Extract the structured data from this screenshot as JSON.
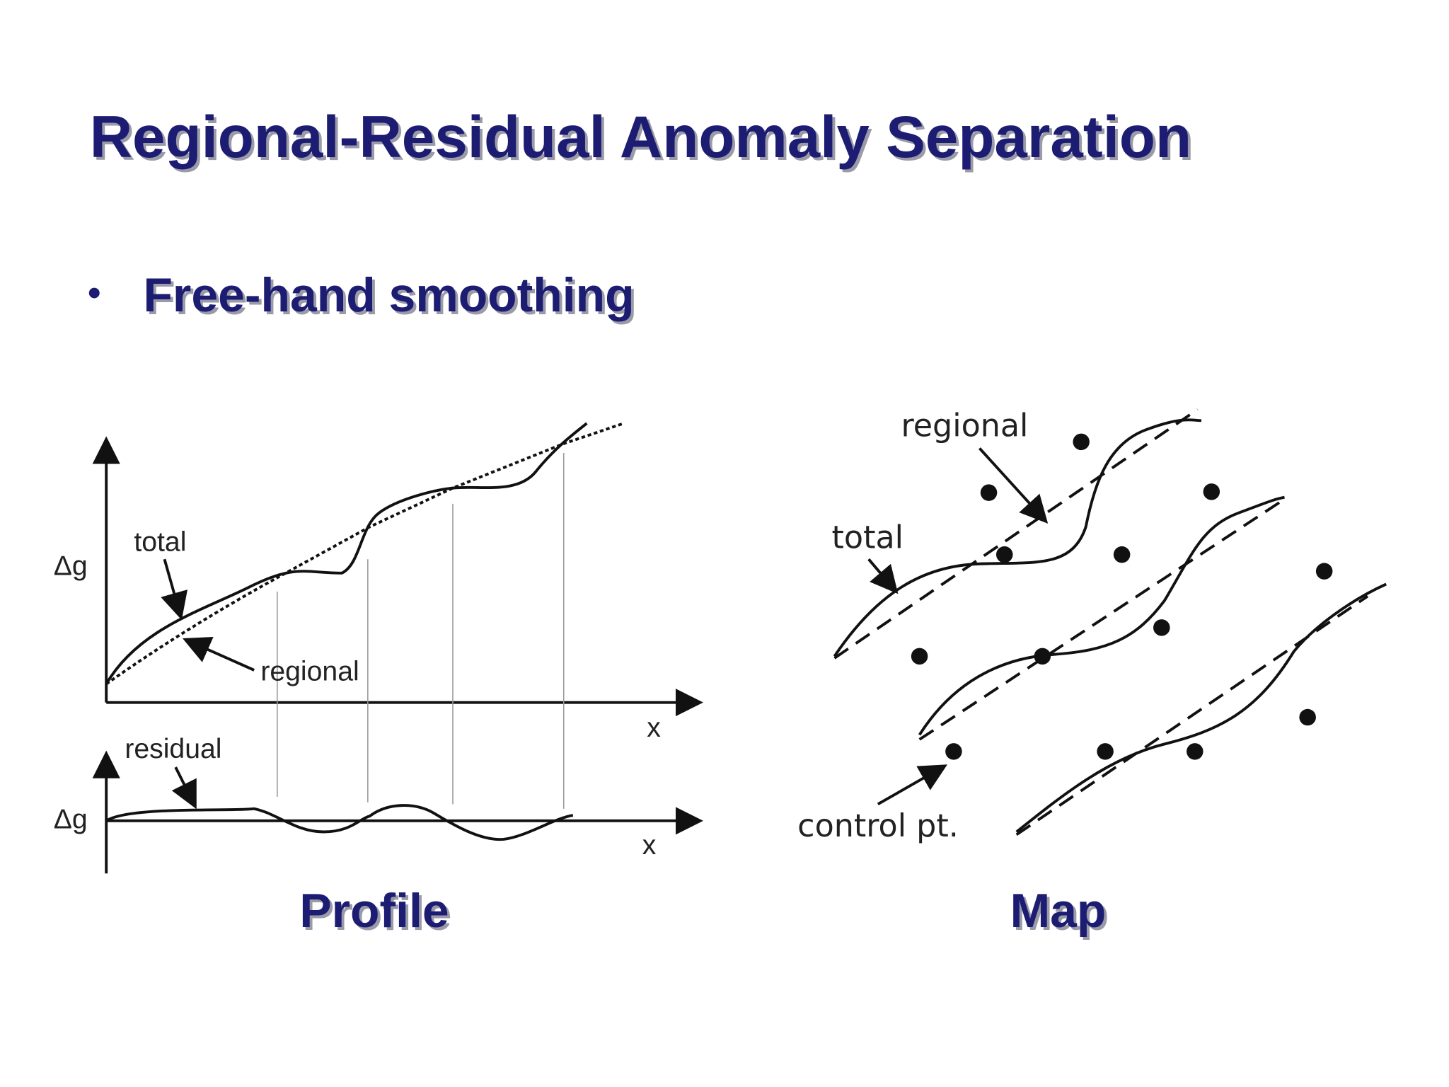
{
  "header": {
    "title": "Regional-Residual Anomaly Separation"
  },
  "bullets": [
    "Free-hand smoothing"
  ],
  "profile": {
    "caption": "Profile",
    "y_label": "Δg",
    "total_label": "total",
    "regional_label": "regional",
    "x_label": "x",
    "residual_label": "residual",
    "residual_y_label": "Δg",
    "residual_x_label": "x"
  },
  "map": {
    "caption": "Map",
    "regional_label": "regional",
    "total_label": "total",
    "control_label": "control pt."
  }
}
